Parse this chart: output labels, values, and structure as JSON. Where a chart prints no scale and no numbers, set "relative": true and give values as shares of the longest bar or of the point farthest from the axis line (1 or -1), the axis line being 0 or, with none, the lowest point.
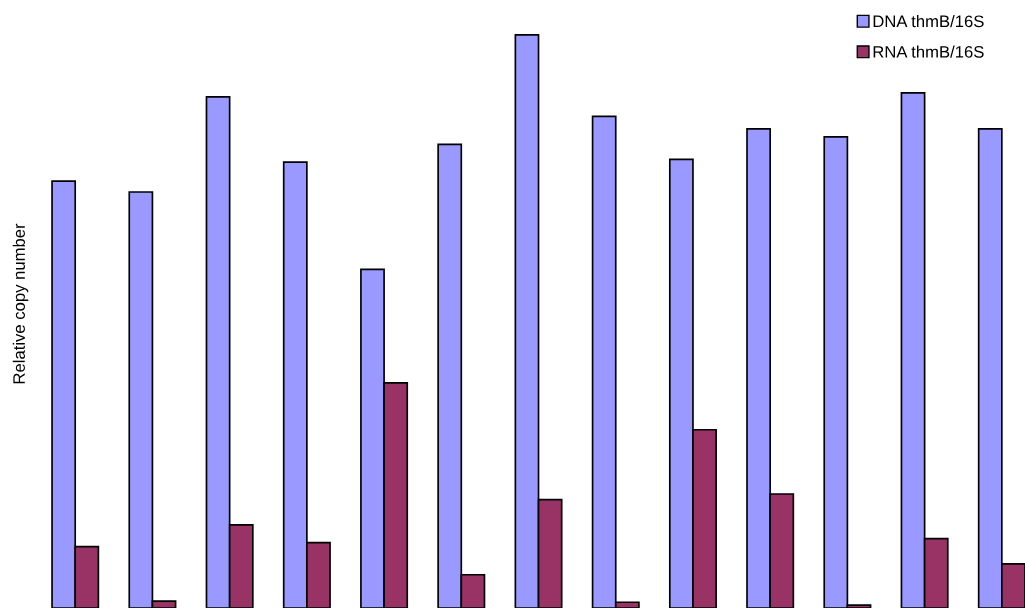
{
  "chart_data": {
    "type": "bar",
    "ylabel": "Relative copy number",
    "relative": true,
    "legend": "top right",
    "categories": [
      null,
      null,
      null,
      null,
      null,
      null,
      null,
      null,
      null,
      null,
      null,
      null,
      null
    ],
    "series": [
      {
        "name": "DNA thmB/16S",
        "color": "#9999ff",
        "values": [
          0.745,
          0.726,
          0.892,
          0.778,
          0.591,
          0.809,
          1,
          0.858,
          0.783,
          0.836,
          0.822,
          0.899,
          0.836
        ]
      },
      {
        "name": "RNA thmB/16S",
        "color": "#993366",
        "values": [
          0.107,
          0.012,
          0.145,
          0.114,
          0.393,
          0.058,
          0.189,
          0.01,
          0.311,
          0.199,
          0.005,
          0.121,
          0.077
        ]
      }
    ]
  }
}
